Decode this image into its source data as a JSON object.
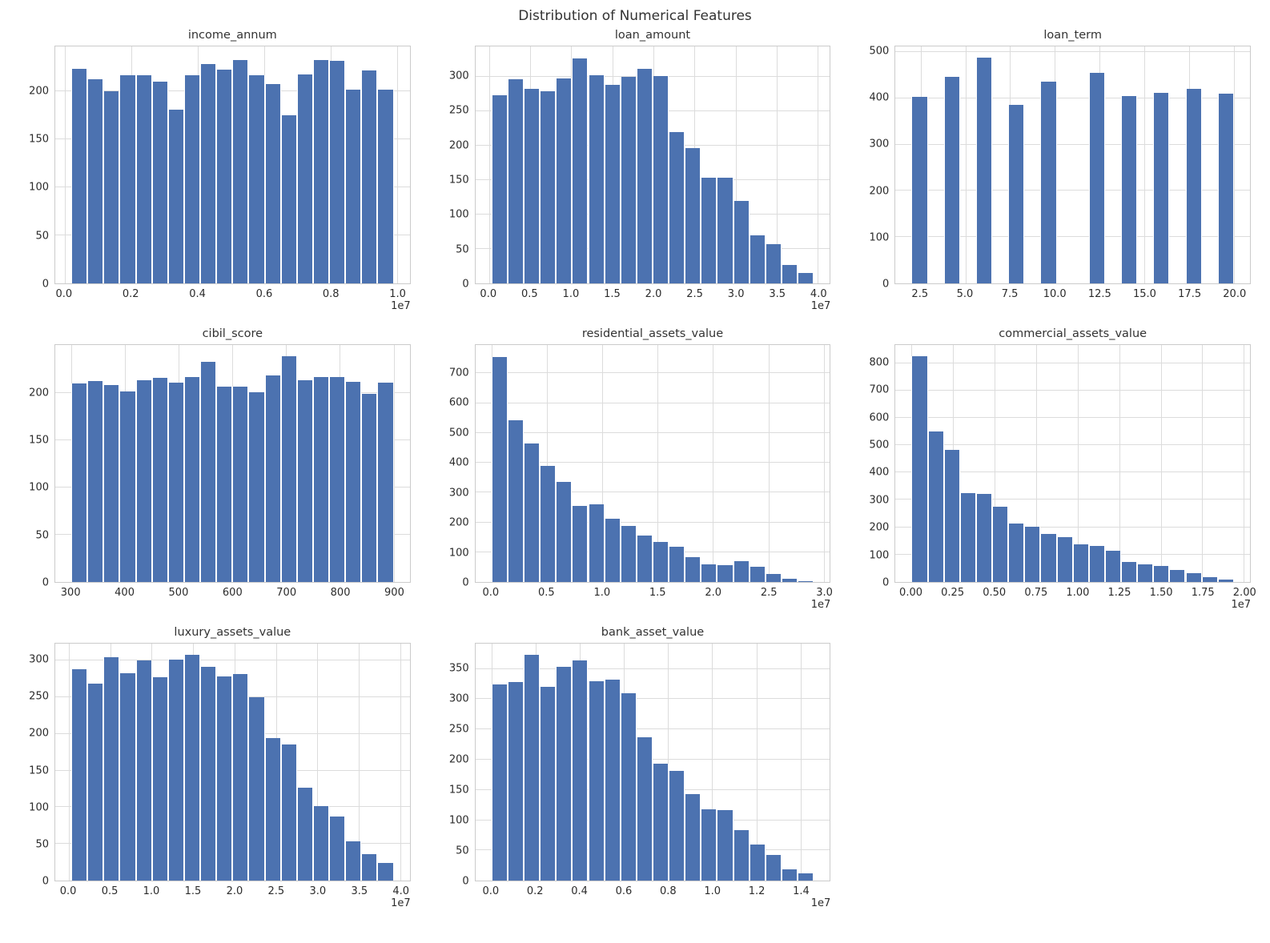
{
  "figure_title": "Distribution of Numerical Features",
  "colors": {
    "bar": "#4c72b0",
    "grid": "#dcdcdc",
    "axis_border": "#cbcbcb",
    "text": "#2b2b2b",
    "title": "#333333"
  },
  "chart_data": [
    {
      "type": "bar",
      "title": "income_annum",
      "xlabel": "",
      "ylabel": "",
      "offset_label": "1e7",
      "bin_start": 200000,
      "bin_width": 485000,
      "x_axis_min": -285000,
      "x_axis_max": 10385000,
      "y_axis_max": 247,
      "x_ticks": [
        {
          "v": 0,
          "l": "0.0"
        },
        {
          "v": 2000000,
          "l": "0.2"
        },
        {
          "v": 4000000,
          "l": "0.4"
        },
        {
          "v": 6000000,
          "l": "0.6"
        },
        {
          "v": 8000000,
          "l": "0.8"
        },
        {
          "v": 10000000,
          "l": "1.0"
        }
      ],
      "y_ticks": [
        {
          "v": 0,
          "l": "0"
        },
        {
          "v": 50,
          "l": "50"
        },
        {
          "v": 100,
          "l": "100"
        },
        {
          "v": 150,
          "l": "150"
        },
        {
          "v": 200,
          "l": "200"
        }
      ],
      "values": [
        224,
        213,
        200,
        217,
        217,
        210,
        181,
        217,
        229,
        223,
        233,
        217,
        208,
        175,
        218,
        233,
        232,
        202,
        222,
        202
      ]
    },
    {
      "type": "bar",
      "title": "loan_amount",
      "xlabel": "",
      "ylabel": "",
      "offset_label": "1e7",
      "bin_start": 300000,
      "bin_width": 1960000,
      "x_axis_min": -1660000,
      "x_axis_max": 41460000,
      "y_axis_max": 344,
      "x_ticks": [
        {
          "v": 0,
          "l": "0.0"
        },
        {
          "v": 5000000,
          "l": "0.5"
        },
        {
          "v": 10000000,
          "l": "1.0"
        },
        {
          "v": 15000000,
          "l": "1.5"
        },
        {
          "v": 20000000,
          "l": "2.0"
        },
        {
          "v": 25000000,
          "l": "2.5"
        },
        {
          "v": 30000000,
          "l": "3.0"
        },
        {
          "v": 35000000,
          "l": "3.5"
        },
        {
          "v": 40000000,
          "l": "4.0"
        }
      ],
      "y_ticks": [
        {
          "v": 0,
          "l": "0"
        },
        {
          "v": 50,
          "l": "50"
        },
        {
          "v": 100,
          "l": "100"
        },
        {
          "v": 150,
          "l": "150"
        },
        {
          "v": 200,
          "l": "200"
        },
        {
          "v": 250,
          "l": "250"
        },
        {
          "v": 300,
          "l": "300"
        }
      ],
      "values": [
        273,
        296,
        282,
        279,
        298,
        327,
        302,
        288,
        300,
        311,
        301,
        220,
        197,
        153,
        153,
        120,
        70,
        57,
        27,
        15
      ]
    },
    {
      "type": "bar",
      "title": "loan_term",
      "xlabel": "",
      "ylabel": "",
      "offset_label": "",
      "bin_start": 2,
      "bin_width": 0.9,
      "x_axis_min": 1.1,
      "x_axis_max": 20.9,
      "y_axis_max": 512,
      "x_ticks": [
        {
          "v": 2.5,
          "l": "2.5"
        },
        {
          "v": 5,
          "l": "5.0"
        },
        {
          "v": 7.5,
          "l": "7.5"
        },
        {
          "v": 10,
          "l": "10.0"
        },
        {
          "v": 12.5,
          "l": "12.5"
        },
        {
          "v": 15,
          "l": "15.0"
        },
        {
          "v": 17.5,
          "l": "17.5"
        },
        {
          "v": 20,
          "l": "20.0"
        }
      ],
      "y_ticks": [
        {
          "v": 0,
          "l": "0"
        },
        {
          "v": 100,
          "l": "100"
        },
        {
          "v": 200,
          "l": "200"
        },
        {
          "v": 300,
          "l": "300"
        },
        {
          "v": 400,
          "l": "400"
        },
        {
          "v": 500,
          "l": "500"
        }
      ],
      "values": [
        403,
        0,
        447,
        0,
        488,
        0,
        385,
        0,
        436,
        0,
        0,
        455,
        0,
        404,
        0,
        411,
        0,
        421,
        0,
        410
      ]
    },
    {
      "type": "bar",
      "title": "cibil_score",
      "xlabel": "",
      "ylabel": "",
      "offset_label": "",
      "bin_start": 300,
      "bin_width": 30,
      "x_axis_min": 270,
      "x_axis_max": 930,
      "y_axis_max": 251,
      "x_ticks": [
        {
          "v": 300,
          "l": "300"
        },
        {
          "v": 400,
          "l": "400"
        },
        {
          "v": 500,
          "l": "500"
        },
        {
          "v": 600,
          "l": "600"
        },
        {
          "v": 700,
          "l": "700"
        },
        {
          "v": 800,
          "l": "800"
        },
        {
          "v": 900,
          "l": "900"
        }
      ],
      "y_ticks": [
        {
          "v": 0,
          "l": "0"
        },
        {
          "v": 50,
          "l": "50"
        },
        {
          "v": 100,
          "l": "100"
        },
        {
          "v": 150,
          "l": "150"
        },
        {
          "v": 200,
          "l": "200"
        }
      ],
      "values": [
        210,
        213,
        209,
        202,
        214,
        216,
        211,
        217,
        233,
        207,
        207,
        201,
        219,
        239,
        214,
        217,
        217,
        212,
        199,
        211
      ]
    },
    {
      "type": "bar",
      "title": "residential_assets_value",
      "xlabel": "",
      "ylabel": "",
      "offset_label": "1e7",
      "bin_start": 0,
      "bin_width": 1455000,
      "x_axis_min": -1455000,
      "x_axis_max": 30555000,
      "y_axis_max": 795,
      "x_ticks": [
        {
          "v": 0,
          "l": "0.0"
        },
        {
          "v": 5000000,
          "l": "0.5"
        },
        {
          "v": 10000000,
          "l": "1.0"
        },
        {
          "v": 15000000,
          "l": "1.5"
        },
        {
          "v": 20000000,
          "l": "2.0"
        },
        {
          "v": 25000000,
          "l": "2.5"
        },
        {
          "v": 30000000,
          "l": "3.0"
        }
      ],
      "y_ticks": [
        {
          "v": 0,
          "l": "0"
        },
        {
          "v": 100,
          "l": "100"
        },
        {
          "v": 200,
          "l": "200"
        },
        {
          "v": 300,
          "l": "300"
        },
        {
          "v": 400,
          "l": "400"
        },
        {
          "v": 500,
          "l": "500"
        },
        {
          "v": 600,
          "l": "600"
        },
        {
          "v": 700,
          "l": "700"
        }
      ],
      "values": [
        755,
        543,
        466,
        389,
        335,
        254,
        261,
        212,
        189,
        155,
        135,
        117,
        84,
        60,
        56,
        71,
        50,
        26,
        10,
        4
      ]
    },
    {
      "type": "bar",
      "title": "commercial_assets_value",
      "xlabel": "",
      "ylabel": "",
      "offset_label": "1e7",
      "bin_start": 0,
      "bin_width": 970000,
      "x_axis_min": -970000,
      "x_axis_max": 20370000,
      "y_axis_max": 866,
      "x_ticks": [
        {
          "v": 0,
          "l": "0.00"
        },
        {
          "v": 2500000,
          "l": "0.25"
        },
        {
          "v": 5000000,
          "l": "0.50"
        },
        {
          "v": 7500000,
          "l": "0.75"
        },
        {
          "v": 10000000,
          "l": "1.00"
        },
        {
          "v": 12500000,
          "l": "1.25"
        },
        {
          "v": 15000000,
          "l": "1.50"
        },
        {
          "v": 17500000,
          "l": "1.75"
        },
        {
          "v": 20000000,
          "l": "2.00"
        }
      ],
      "y_ticks": [
        {
          "v": 0,
          "l": "0"
        },
        {
          "v": 100,
          "l": "100"
        },
        {
          "v": 200,
          "l": "200"
        },
        {
          "v": 300,
          "l": "300"
        },
        {
          "v": 400,
          "l": "400"
        },
        {
          "v": 500,
          "l": "500"
        },
        {
          "v": 600,
          "l": "600"
        },
        {
          "v": 700,
          "l": "700"
        },
        {
          "v": 800,
          "l": "800"
        }
      ],
      "values": [
        825,
        550,
        483,
        326,
        322,
        275,
        214,
        201,
        177,
        165,
        137,
        131,
        113,
        73,
        64,
        59,
        44,
        32,
        18,
        9
      ]
    },
    {
      "type": "bar",
      "title": "luxury_assets_value",
      "xlabel": "",
      "ylabel": "",
      "offset_label": "1e7",
      "bin_start": 300000,
      "bin_width": 1945000,
      "x_axis_min": -1645000,
      "x_axis_max": 41145000,
      "y_axis_max": 323,
      "x_ticks": [
        {
          "v": 0,
          "l": "0.0"
        },
        {
          "v": 5000000,
          "l": "0.5"
        },
        {
          "v": 10000000,
          "l": "1.0"
        },
        {
          "v": 15000000,
          "l": "1.5"
        },
        {
          "v": 20000000,
          "l": "2.0"
        },
        {
          "v": 25000000,
          "l": "2.5"
        },
        {
          "v": 30000000,
          "l": "3.0"
        },
        {
          "v": 35000000,
          "l": "3.5"
        },
        {
          "v": 40000000,
          "l": "4.0"
        }
      ],
      "y_ticks": [
        {
          "v": 0,
          "l": "0"
        },
        {
          "v": 50,
          "l": "50"
        },
        {
          "v": 100,
          "l": "100"
        },
        {
          "v": 150,
          "l": "150"
        },
        {
          "v": 200,
          "l": "200"
        },
        {
          "v": 250,
          "l": "250"
        },
        {
          "v": 300,
          "l": "300"
        }
      ],
      "values": [
        288,
        268,
        304,
        283,
        300,
        277,
        301,
        308,
        291,
        278,
        282,
        250,
        194,
        186,
        127,
        102,
        87,
        53,
        36,
        24
      ]
    },
    {
      "type": "bar",
      "title": "bank_asset_value",
      "xlabel": "",
      "ylabel": "",
      "offset_label": "1e7",
      "bin_start": 0,
      "bin_width": 730000,
      "x_axis_min": -730000,
      "x_axis_max": 15330000,
      "y_axis_max": 392,
      "x_ticks": [
        {
          "v": 0,
          "l": "0.0"
        },
        {
          "v": 2000000,
          "l": "0.2"
        },
        {
          "v": 4000000,
          "l": "0.4"
        },
        {
          "v": 6000000,
          "l": "0.6"
        },
        {
          "v": 8000000,
          "l": "0.8"
        },
        {
          "v": 10000000,
          "l": "1.0"
        },
        {
          "v": 12000000,
          "l": "1.2"
        },
        {
          "v": 14000000,
          "l": "1.4"
        }
      ],
      "y_ticks": [
        {
          "v": 0,
          "l": "0"
        },
        {
          "v": 50,
          "l": "50"
        },
        {
          "v": 100,
          "l": "100"
        },
        {
          "v": 150,
          "l": "150"
        },
        {
          "v": 200,
          "l": "200"
        },
        {
          "v": 250,
          "l": "250"
        },
        {
          "v": 300,
          "l": "300"
        },
        {
          "v": 350,
          "l": "350"
        }
      ],
      "values": [
        324,
        329,
        373,
        320,
        354,
        364,
        330,
        333,
        310,
        237,
        193,
        181,
        143,
        118,
        116,
        83,
        60,
        42,
        19,
        12
      ]
    }
  ]
}
